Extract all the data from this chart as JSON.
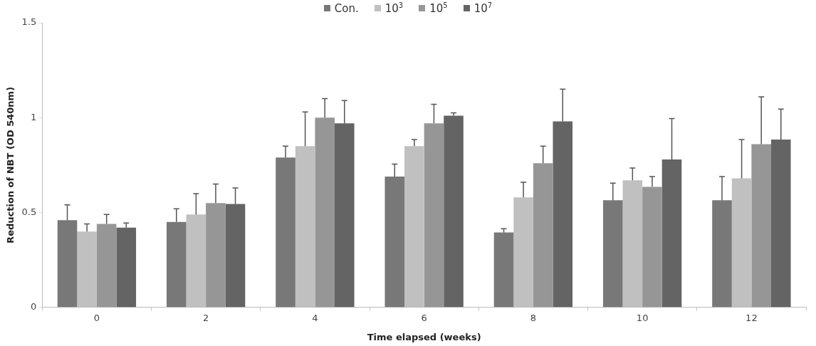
{
  "chart_data": {
    "type": "bar",
    "xlabel": "Time elapsed (weeks)",
    "ylabel": "Reduction of NBT (OD 540nm)",
    "categories": [
      "0",
      "2",
      "4",
      "6",
      "8",
      "10",
      "12"
    ],
    "series": [
      {
        "name": "Con.",
        "color": "#787878",
        "values": [
          0.46,
          0.45,
          0.79,
          0.69,
          0.395,
          0.565,
          0.565
        ],
        "errors": [
          [
            0.46,
            0.54
          ],
          [
            0.45,
            0.52
          ],
          [
            0.79,
            0.85
          ],
          [
            0.69,
            0.755
          ],
          [
            0.395,
            0.415
          ],
          [
            0.565,
            0.655
          ],
          [
            0.565,
            0.69
          ]
        ]
      },
      {
        "name": "10$^{3}$",
        "color": "#c0c0c0",
        "values": [
          0.4,
          0.49,
          0.85,
          0.85,
          0.58,
          0.67,
          0.68
        ],
        "errors": [
          [
            0.4,
            0.44
          ],
          [
            0.49,
            0.6
          ],
          [
            0.85,
            1.03
          ],
          [
            0.85,
            0.885
          ],
          [
            0.58,
            0.66
          ],
          [
            0.67,
            0.735
          ],
          [
            0.68,
            0.885
          ]
        ]
      },
      {
        "name": "10$^{5}$",
        "color": "#969696",
        "values": [
          0.44,
          0.55,
          1.0,
          0.97,
          0.76,
          0.635,
          0.86
        ],
        "errors": [
          [
            0.44,
            0.49
          ],
          [
            0.55,
            0.65
          ],
          [
            1.0,
            1.1
          ],
          [
            0.97,
            1.07
          ],
          [
            0.76,
            0.85
          ],
          [
            0.635,
            0.69
          ],
          [
            0.86,
            1.11
          ]
        ]
      },
      {
        "name": "10$^{7}$",
        "color": "#646464",
        "values": [
          0.42,
          0.545,
          0.97,
          1.01,
          0.98,
          0.78,
          0.885
        ],
        "errors": [
          [
            0.42,
            0.445
          ],
          [
            0.545,
            0.63
          ],
          [
            0.97,
            1.09
          ],
          [
            1.01,
            1.025
          ],
          [
            0.98,
            1.15
          ],
          [
            0.78,
            0.995
          ],
          [
            0.885,
            1.045
          ]
        ]
      }
    ],
    "ylim": [
      0,
      1.5
    ],
    "yticks": [
      0,
      0.5,
      1,
      1.5
    ],
    "grid": false,
    "legend": "top"
  }
}
